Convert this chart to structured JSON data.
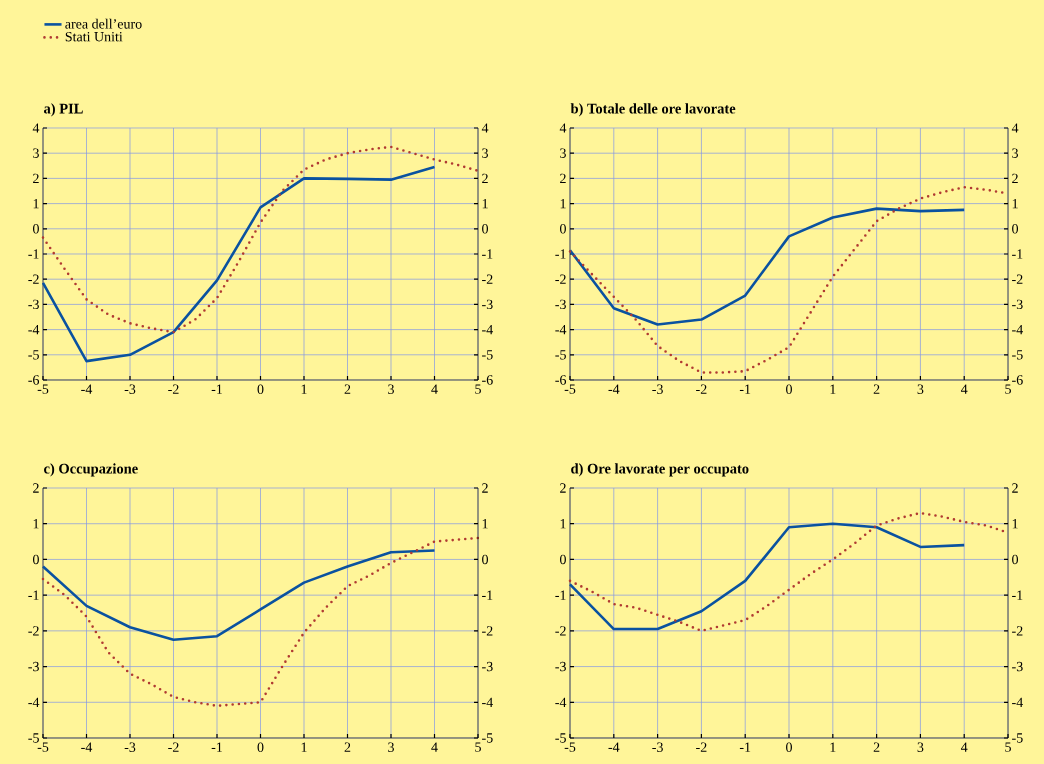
{
  "chart_data": [
    {
      "type": "line",
      "title": "a) PIL",
      "x": [
        -5,
        -4,
        -3,
        -2,
        -1,
        0,
        1,
        2,
        3,
        4
      ],
      "xlim": [
        -5,
        5
      ],
      "xticks": [
        -5,
        -4,
        -3,
        -2,
        -1,
        0,
        1,
        2,
        3,
        4,
        5
      ],
      "ylim": [
        -6,
        4
      ],
      "yticks": [
        -6,
        -5,
        -4,
        -3,
        -2,
        -1,
        0,
        1,
        2,
        3,
        4
      ],
      "y2lim": [
        -6,
        4
      ],
      "y2ticks": [
        -6,
        -5,
        -4,
        -3,
        -2,
        -1,
        0,
        1,
        2,
        3,
        4
      ],
      "grid": true,
      "legend": "top left",
      "series": [
        {
          "name": "area dell’euro",
          "color": "#0a52a0",
          "line_style": "solid",
          "values": [
            -2.15,
            -5.25,
            -5.0,
            -4.1,
            -2.05,
            0.85,
            2.0,
            1.98,
            1.95,
            2.45
          ]
        },
        {
          "name": "Stati Uniti",
          "color": "#b03a32",
          "line_style": "dotted",
          "x": [
            -5,
            -4.5,
            -4,
            -3.5,
            -3,
            -2.5,
            -2,
            -1.5,
            -1,
            -0.5,
            0,
            0.5,
            1,
            1.5,
            2,
            2.5,
            3,
            3.5,
            4,
            4.5,
            5
          ],
          "values": [
            -0.35,
            -1.6,
            -2.8,
            -3.4,
            -3.75,
            -3.95,
            -4.1,
            -3.6,
            -2.75,
            -1.3,
            0.25,
            1.5,
            2.35,
            2.75,
            3.0,
            3.15,
            3.25,
            3.0,
            2.75,
            2.55,
            2.3
          ]
        }
      ]
    },
    {
      "type": "line",
      "title": "b) Totale delle ore lavorate",
      "x": [
        -5,
        -4,
        -3,
        -2,
        -1,
        0,
        1,
        2,
        3,
        4
      ],
      "xlim": [
        -5,
        5
      ],
      "xticks": [
        -5,
        -4,
        -3,
        -2,
        -1,
        0,
        1,
        2,
        3,
        4,
        5
      ],
      "ylim": [
        -6,
        4
      ],
      "yticks": [
        -6,
        -5,
        -4,
        -3,
        -2,
        -1,
        0,
        1,
        2,
        3,
        4
      ],
      "y2lim": [
        -6,
        4
      ],
      "y2ticks": [
        -6,
        -5,
        -4,
        -3,
        -2,
        -1,
        0,
        1,
        2,
        3,
        4
      ],
      "grid": true,
      "series": [
        {
          "color": "#0a52a0",
          "line_style": "solid",
          "values": [
            -0.85,
            -3.15,
            -3.8,
            -3.6,
            -2.65,
            -0.3,
            0.45,
            0.8,
            0.7,
            0.75
          ]
        },
        {
          "color": "#b03a32",
          "line_style": "dotted",
          "x": [
            -5,
            -4.5,
            -4,
            -3.5,
            -3,
            -2.5,
            -2,
            -1.5,
            -1,
            -0.5,
            0,
            0.5,
            1,
            1.5,
            2,
            2.5,
            3,
            3.5,
            4,
            4.5,
            5
          ],
          "values": [
            -0.9,
            -1.8,
            -2.7,
            -3.6,
            -4.65,
            -5.25,
            -5.7,
            -5.7,
            -5.65,
            -5.2,
            -4.7,
            -3.3,
            -1.9,
            -0.8,
            0.3,
            0.8,
            1.2,
            1.45,
            1.65,
            1.55,
            1.4
          ]
        }
      ]
    },
    {
      "type": "line",
      "title": "c) Occupazione",
      "x": [
        -5,
        -4,
        -3,
        -2,
        -1,
        0,
        1,
        2,
        3,
        4
      ],
      "xlim": [
        -5,
        5
      ],
      "xticks": [
        -5,
        -4,
        -3,
        -2,
        -1,
        0,
        1,
        2,
        3,
        4,
        5
      ],
      "ylim": [
        -5,
        2
      ],
      "yticks": [
        -5,
        -4,
        -3,
        -2,
        -1,
        0,
        1,
        2
      ],
      "y2lim": [
        -5,
        2
      ],
      "y2ticks": [
        -5,
        -4,
        -3,
        -2,
        -1,
        0,
        1,
        2
      ],
      "grid": true,
      "series": [
        {
          "color": "#0a52a0",
          "line_style": "solid",
          "values": [
            -0.2,
            -1.3,
            -1.9,
            -2.25,
            -2.15,
            -1.4,
            -0.65,
            -0.2,
            0.2,
            0.25
          ]
        },
        {
          "color": "#b03a32",
          "line_style": "dotted",
          "x": [
            -5,
            -4.5,
            -4,
            -3.5,
            -3,
            -2.5,
            -2,
            -1.5,
            -1,
            -0.5,
            0,
            0.5,
            1,
            1.5,
            2,
            2.5,
            3,
            3.5,
            4,
            4.5,
            5
          ],
          "values": [
            -0.55,
            -1.0,
            -1.6,
            -2.6,
            -3.2,
            -3.5,
            -3.85,
            -4.0,
            -4.1,
            -4.05,
            -4.0,
            -3.0,
            -2.05,
            -1.35,
            -0.75,
            -0.45,
            -0.1,
            0.2,
            0.5,
            0.55,
            0.6
          ]
        }
      ]
    },
    {
      "type": "line",
      "title": "d) Ore lavorate per occupato",
      "x": [
        -5,
        -4,
        -3,
        -2,
        -1,
        0,
        1,
        2,
        3,
        4
      ],
      "xlim": [
        -5,
        5
      ],
      "xticks": [
        -5,
        -4,
        -3,
        -2,
        -1,
        0,
        1,
        2,
        3,
        4,
        5
      ],
      "ylim": [
        -5,
        2
      ],
      "yticks": [
        -5,
        -4,
        -3,
        -2,
        -1,
        0,
        1,
        2
      ],
      "y2lim": [
        -5,
        2
      ],
      "y2ticks": [
        -5,
        -4,
        -3,
        -2,
        -1,
        0,
        1,
        2
      ],
      "grid": true,
      "series": [
        {
          "color": "#0a52a0",
          "line_style": "solid",
          "values": [
            -0.7,
            -1.95,
            -1.95,
            -1.45,
            -0.6,
            0.9,
            1.0,
            0.9,
            0.35,
            0.4
          ]
        },
        {
          "color": "#b03a32",
          "line_style": "dotted",
          "x": [
            -5,
            -4.5,
            -4,
            -3.5,
            -3,
            -2.5,
            -2,
            -1.5,
            -1,
            -0.5,
            0,
            0.5,
            1,
            1.5,
            2,
            2.5,
            3,
            3.5,
            4,
            4.5,
            5
          ],
          "values": [
            -0.6,
            -0.9,
            -1.25,
            -1.35,
            -1.55,
            -1.75,
            -2.0,
            -1.85,
            -1.7,
            -1.3,
            -0.85,
            -0.4,
            0.0,
            0.45,
            0.95,
            1.15,
            1.3,
            1.2,
            1.05,
            0.95,
            0.75
          ]
        }
      ]
    }
  ]
}
